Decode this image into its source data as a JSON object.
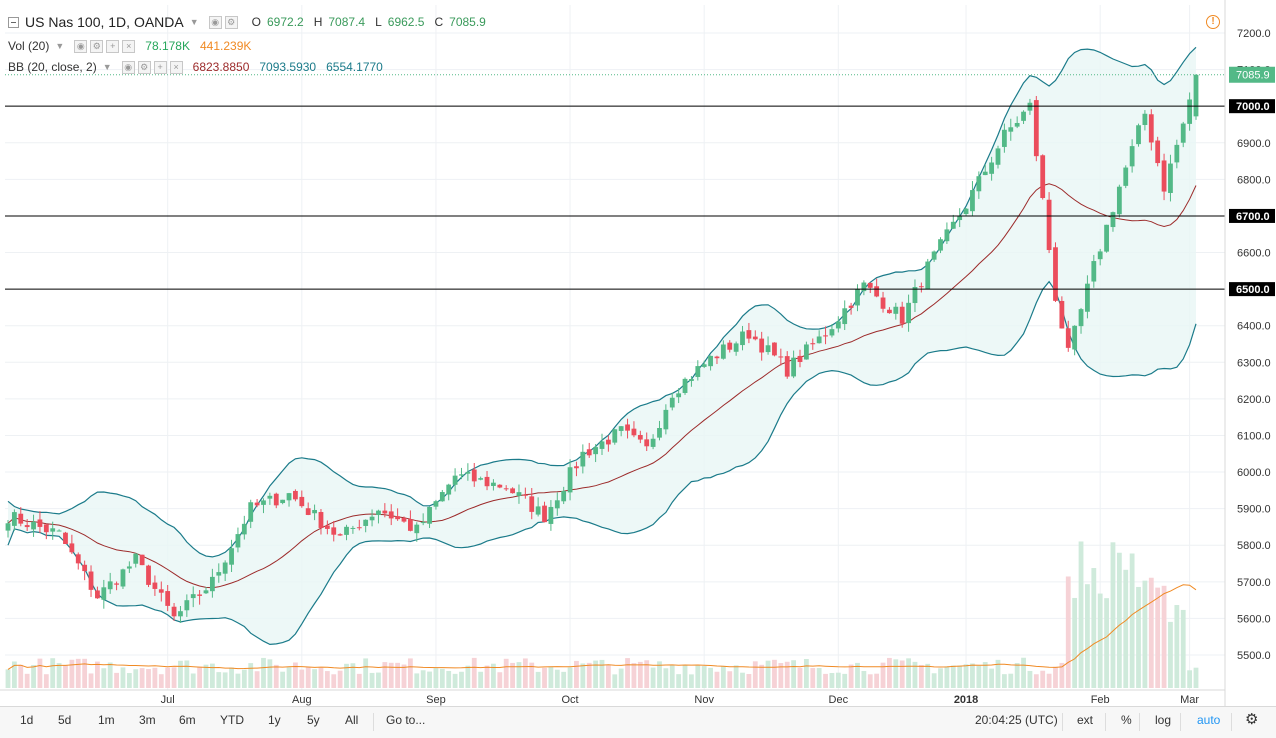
{
  "legend": {
    "symbol": "US Nas 100, 1D, OANDA",
    "open_label": "O",
    "open": "6972.2",
    "high_label": "H",
    "high": "7087.4",
    "low_label": "L",
    "low": "6962.5",
    "close_label": "C",
    "close": "7085.9",
    "vol_label": "Vol (20)",
    "vol_value": "78.178K",
    "vol_ma": "441.239K",
    "bb_label": "BB (20, close, 2)",
    "bb_mid": "6823.8850",
    "bb_upper": "7093.5930",
    "bb_lower": "6554.1770"
  },
  "price_axis": {
    "ticks": [
      "7200.0",
      "7100.0",
      "7000.0",
      "6900.0",
      "6800.0",
      "6700.0",
      "6600.0",
      "6500.0",
      "6400.0",
      "6300.0",
      "6200.0",
      "6100.0",
      "6000.0",
      "5900.0",
      "5800.0",
      "5700.0",
      "5600.0",
      "5500.0"
    ],
    "last_price_label": "7085.9"
  },
  "time_axis": [
    "Jul",
    "Aug",
    "Sep",
    "Oct",
    "Nov",
    "Dec",
    "2018",
    "Feb",
    "Mar"
  ],
  "horizontal_lines": [
    "7000.0",
    "6700.0",
    "6500.0"
  ],
  "bottom_bar": {
    "ranges": [
      "1d",
      "5d",
      "1m",
      "3m",
      "6m",
      "YTD",
      "1y",
      "5y",
      "All"
    ],
    "goto": "Go to...",
    "time": "20:04:25 (UTC)",
    "ext": "ext",
    "pct": "%",
    "log": "log",
    "auto": "auto"
  },
  "colors": {
    "up": "#53b987",
    "down": "#eb4d5c",
    "bb_band": "#1b7b8a",
    "bb_basis": "#9c2a2a",
    "vol_ma": "#f08a24",
    "hline": "#000000",
    "accent": "#2196f3"
  },
  "chart_data": {
    "type": "candlestick",
    "title": "US Nas 100, 1D, OANDA",
    "ylim": [
      5420,
      7250
    ],
    "anchors": [
      {
        "x": 0,
        "price": 5880
      },
      {
        "x": 8,
        "price": 5830
      },
      {
        "x": 14,
        "price": 5660
      },
      {
        "x": 20,
        "price": 5760
      },
      {
        "x": 26,
        "price": 5600
      },
      {
        "x": 32,
        "price": 5700
      },
      {
        "x": 38,
        "price": 5900
      },
      {
        "x": 44,
        "price": 5940
      },
      {
        "x": 52,
        "price": 5820
      },
      {
        "x": 58,
        "price": 5900
      },
      {
        "x": 64,
        "price": 5840
      },
      {
        "x": 70,
        "price": 5990
      },
      {
        "x": 78,
        "price": 5960
      },
      {
        "x": 84,
        "price": 5880
      },
      {
        "x": 90,
        "price": 6050
      },
      {
        "x": 96,
        "price": 6110
      },
      {
        "x": 100,
        "price": 6060
      },
      {
        "x": 104,
        "price": 6220
      },
      {
        "x": 110,
        "price": 6310
      },
      {
        "x": 116,
        "price": 6380
      },
      {
        "x": 122,
        "price": 6280
      },
      {
        "x": 128,
        "price": 6380
      },
      {
        "x": 134,
        "price": 6510
      },
      {
        "x": 140,
        "price": 6420
      },
      {
        "x": 144,
        "price": 6560
      },
      {
        "x": 150,
        "price": 6730
      },
      {
        "x": 156,
        "price": 6920
      },
      {
        "x": 160,
        "price": 7000
      },
      {
        "x": 164,
        "price": 6480
      },
      {
        "x": 166,
        "price": 6320
      },
      {
        "x": 170,
        "price": 6560
      },
      {
        "x": 174,
        "price": 6780
      },
      {
        "x": 178,
        "price": 6980
      },
      {
        "x": 181,
        "price": 6780
      },
      {
        "x": 184,
        "price": 6950
      },
      {
        "x": 186,
        "price": 7086
      }
    ],
    "volume_ylim": [
      0,
      2000000
    ]
  }
}
